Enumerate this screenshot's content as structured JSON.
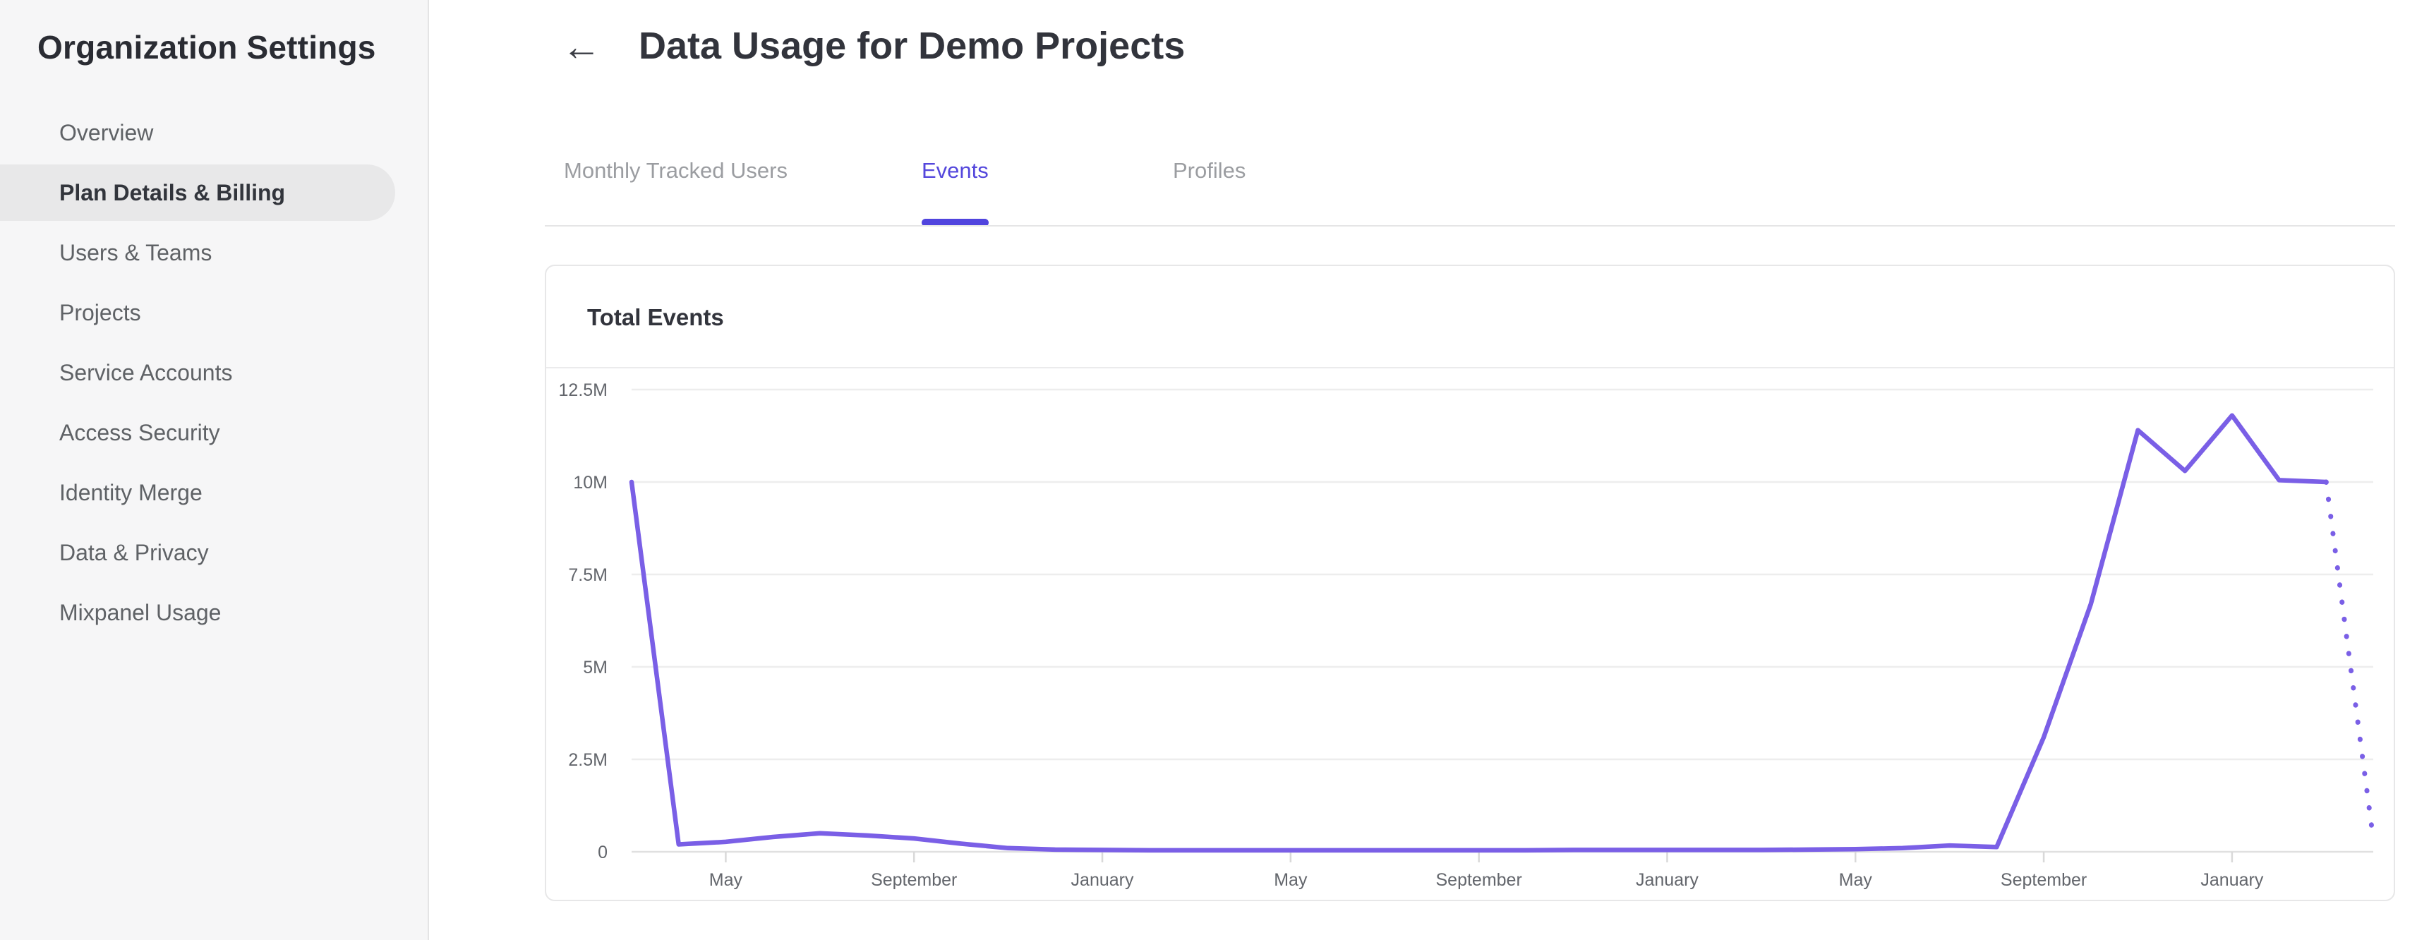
{
  "sidebar": {
    "title": "Organization Settings",
    "items": [
      {
        "label": "Overview",
        "selected": false
      },
      {
        "label": "Plan Details & Billing",
        "selected": true
      },
      {
        "label": "Users & Teams",
        "selected": false
      },
      {
        "label": "Projects",
        "selected": false
      },
      {
        "label": "Service Accounts",
        "selected": false
      },
      {
        "label": "Access Security",
        "selected": false
      },
      {
        "label": "Identity Merge",
        "selected": false
      },
      {
        "label": "Data & Privacy",
        "selected": false
      },
      {
        "label": "Mixpanel Usage",
        "selected": false
      }
    ]
  },
  "header": {
    "back_icon": "arrow-left",
    "title": "Data Usage for Demo Projects"
  },
  "tabs": [
    {
      "label": "Monthly Tracked Users",
      "active": false
    },
    {
      "label": "Events",
      "active": true
    },
    {
      "label": "Profiles",
      "active": false
    }
  ],
  "card": {
    "title": "Total Events"
  },
  "colors": {
    "accent_tab": "#5447DC",
    "tab_underline": "#5044DE",
    "line": "#7A5FE6",
    "gridline": "#EDEDED",
    "axis_line": "#E0E0E0",
    "tick": "#D9D9D9",
    "axis_text": "#63666C",
    "sidebar_bg": "#F6F6F7",
    "selected_pill_bg": "#E8E8E9"
  },
  "chart_data": {
    "type": "line",
    "title": "Total Events",
    "series_name": "Total Events",
    "unit": "events per month (millions)",
    "ylim": [
      0,
      12.5
    ],
    "grid": "horizontal",
    "legend": "none",
    "y_gridlines": [
      {
        "label": "12.5M",
        "value": 12.5
      },
      {
        "label": "10M",
        "value": 10
      },
      {
        "label": "7.5M",
        "value": 7.5
      },
      {
        "label": "5M",
        "value": 5
      },
      {
        "label": "2.5M",
        "value": 2.5
      },
      {
        "label": "0",
        "value": 0
      }
    ],
    "x_ticks": [
      {
        "index": 2,
        "label": "May"
      },
      {
        "index": 6,
        "label": "September"
      },
      {
        "index": 10,
        "label": "January"
      },
      {
        "index": 14,
        "label": "May"
      },
      {
        "index": 18,
        "label": "September"
      },
      {
        "index": 22,
        "label": "January"
      },
      {
        "index": 26,
        "label": "May"
      },
      {
        "index": 30,
        "label": "September"
      },
      {
        "index": 34,
        "label": "January"
      }
    ],
    "last_segment_projected": true,
    "points": [
      {
        "month": "March",
        "value_m": 10.0
      },
      {
        "month": "April",
        "value_m": 0.2
      },
      {
        "month": "May",
        "value_m": 0.27
      },
      {
        "month": "June",
        "value_m": 0.4
      },
      {
        "month": "July",
        "value_m": 0.5
      },
      {
        "month": "August",
        "value_m": 0.44
      },
      {
        "month": "September",
        "value_m": 0.36
      },
      {
        "month": "October",
        "value_m": 0.22
      },
      {
        "month": "November",
        "value_m": 0.1
      },
      {
        "month": "December",
        "value_m": 0.06
      },
      {
        "month": "January",
        "value_m": 0.05
      },
      {
        "month": "February",
        "value_m": 0.04
      },
      {
        "month": "March",
        "value_m": 0.04
      },
      {
        "month": "April",
        "value_m": 0.04
      },
      {
        "month": "May",
        "value_m": 0.04
      },
      {
        "month": "June",
        "value_m": 0.04
      },
      {
        "month": "July",
        "value_m": 0.04
      },
      {
        "month": "August",
        "value_m": 0.04
      },
      {
        "month": "September",
        "value_m": 0.04
      },
      {
        "month": "October",
        "value_m": 0.04
      },
      {
        "month": "November",
        "value_m": 0.05
      },
      {
        "month": "December",
        "value_m": 0.05
      },
      {
        "month": "January",
        "value_m": 0.05
      },
      {
        "month": "February",
        "value_m": 0.05
      },
      {
        "month": "March",
        "value_m": 0.05
      },
      {
        "month": "April",
        "value_m": 0.06
      },
      {
        "month": "May",
        "value_m": 0.07
      },
      {
        "month": "June",
        "value_m": 0.1
      },
      {
        "month": "July",
        "value_m": 0.17
      },
      {
        "month": "August",
        "value_m": 0.13
      },
      {
        "month": "September",
        "value_m": 3.1
      },
      {
        "month": "October",
        "value_m": 6.7
      },
      {
        "month": "November",
        "value_m": 11.4
      },
      {
        "month": "December",
        "value_m": 10.3
      },
      {
        "month": "January",
        "value_m": 11.8
      },
      {
        "month": "February",
        "value_m": 10.05
      },
      {
        "month": "March",
        "value_m": 10.0
      },
      {
        "month": "April",
        "value_m": 0.35
      }
    ]
  }
}
